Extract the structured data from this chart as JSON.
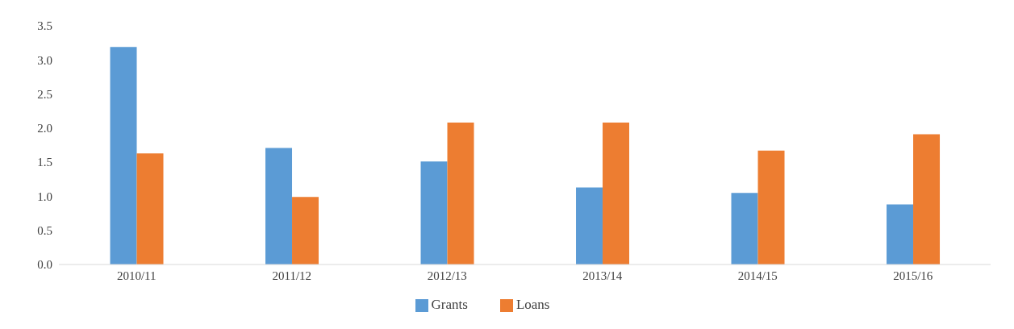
{
  "chart_data": {
    "type": "bar",
    "categories": [
      "2010/11",
      "2011/12",
      "2012/13",
      "2013/14",
      "2014/15",
      "2015/16"
    ],
    "series": [
      {
        "name": "Grants",
        "color": "#5b9bd5",
        "values": [
          3.19,
          1.71,
          1.51,
          1.13,
          1.05,
          0.88
        ]
      },
      {
        "name": "Loans",
        "color": "#ed7d31",
        "values": [
          1.63,
          0.99,
          2.08,
          2.08,
          1.67,
          1.91
        ]
      }
    ],
    "ylim": [
      0,
      3.5
    ],
    "yticks": [
      {
        "value": 0,
        "label": "0.0"
      },
      {
        "value": 0.5,
        "label": "0.5"
      },
      {
        "value": 1,
        "label": "1.0"
      },
      {
        "value": 1.5,
        "label": "1.5"
      },
      {
        "value": 2,
        "label": "2.0"
      },
      {
        "value": 2.5,
        "label": "2.5"
      },
      {
        "value": 3,
        "label": "3.0"
      },
      {
        "value": 3.5,
        "label": "3.5"
      }
    ],
    "grid": false,
    "legend": "bottom"
  }
}
